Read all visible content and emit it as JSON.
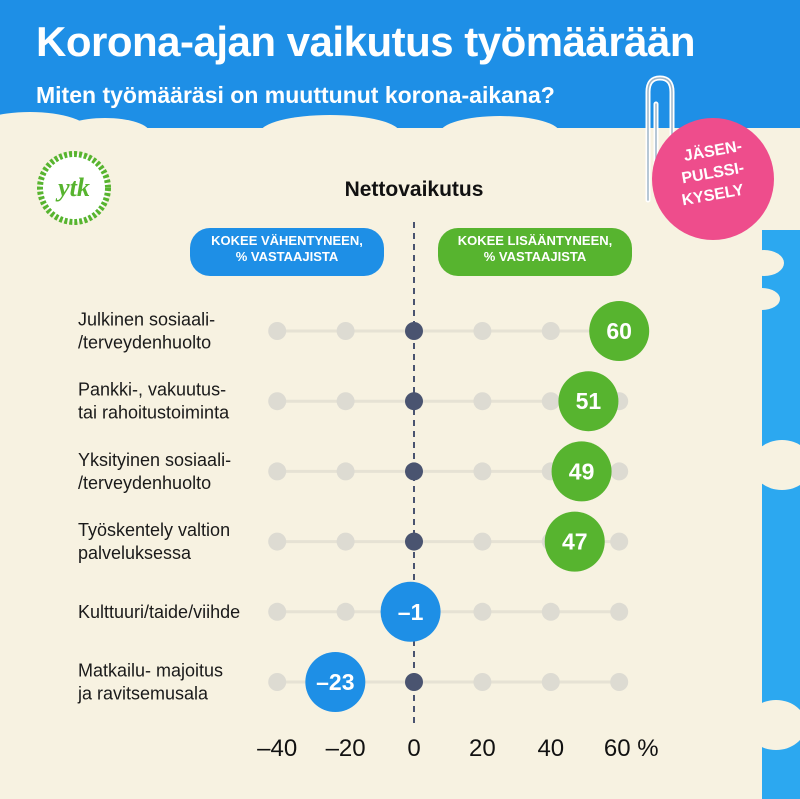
{
  "header": {
    "title": "Korona-ajan vaikutus työmäärään",
    "subtitle": "Miten työmääräsi on muuttunut korona-aikana?"
  },
  "logo": {
    "text": "ytk",
    "icon": "ytk-logo-icon"
  },
  "badge": {
    "lines": [
      "JÄSEN-",
      "PULSSI-",
      "KYSELY"
    ]
  },
  "legend": {
    "decrease": {
      "line1": "KOKEE VÄHENTYNEEN,",
      "line2": "% VASTAAJISTA"
    },
    "increase": {
      "line1": "KOKEE LISÄÄNTYNEEN,",
      "line2": "% VASTAAJISTA"
    }
  },
  "colors": {
    "header": "#1e8fe6",
    "background": "#f7f2e1",
    "positive": "#57b42f",
    "negative": "#1e8fe6",
    "track_dot": "#dddbd2",
    "zero_dot": "#4a5470",
    "badge": "#ee4d8c"
  },
  "chart_data": {
    "type": "dot",
    "title": "Nettovaikutus",
    "x_ticks": [
      "–40",
      "–20",
      "0",
      "20",
      "40",
      "60 %"
    ],
    "x_tick_values": [
      -40,
      -20,
      0,
      20,
      40,
      60
    ],
    "xlim": [
      -40,
      60
    ],
    "categories": [
      [
        "Julkinen sosiaali-",
        "/terveydenhuolto"
      ],
      [
        "Pankki-, vakuutus-",
        "tai rahoitustoiminta"
      ],
      [
        "Yksityinen sosiaali-",
        "/terveydenhuolto"
      ],
      [
        "Työskentely valtion",
        "palveluksessa"
      ],
      [
        "Kulttuuri/taide/viihde"
      ],
      [
        "Matkailu- majoitus",
        "ja ravitsemusala"
      ]
    ],
    "values": [
      60,
      51,
      49,
      47,
      -1,
      -23
    ],
    "value_labels": [
      "60",
      "51",
      "49",
      "47",
      "–1",
      "–23"
    ]
  }
}
